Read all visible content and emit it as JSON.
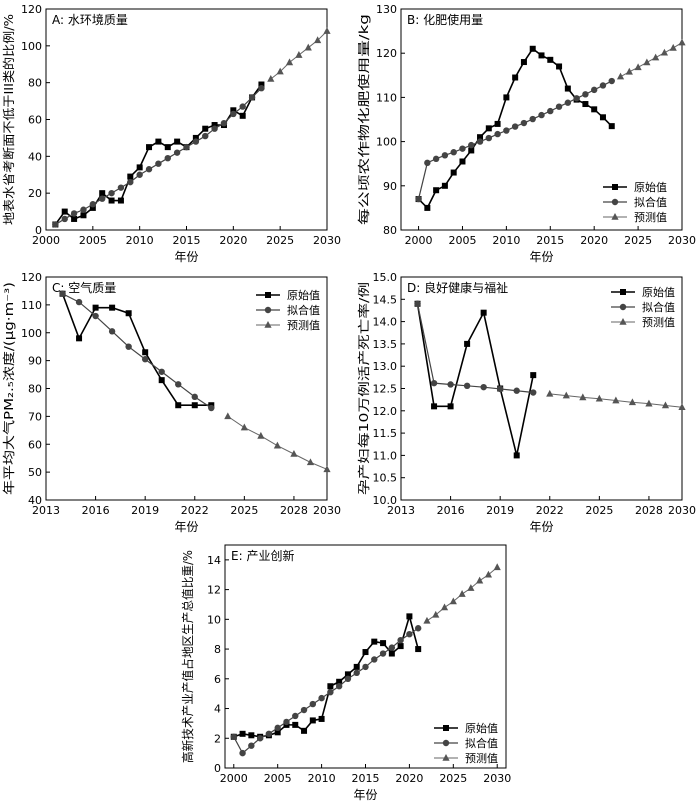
{
  "legend_labels": [
    "原始值",
    "拟合值",
    "预测值"
  ],
  "chart_data": [
    {
      "type": "line",
      "title": "A: 水环境质量",
      "xlabel": "年份",
      "ylabel": "地表水省考断面不低于III类的比例/%",
      "xlim": [
        2000,
        2030
      ],
      "ylim": [
        0,
        120
      ],
      "xticks": [
        2000,
        2005,
        2010,
        2015,
        2020,
        2025,
        2030
      ],
      "yticks": [
        0,
        20,
        40,
        60,
        80,
        100,
        120
      ],
      "legend": "none",
      "series": [
        {
          "name": "原始值",
          "marker": "square",
          "x": [
            2001,
            2002,
            2003,
            2004,
            2005,
            2006,
            2007,
            2008,
            2009,
            2010,
            2011,
            2012,
            2013,
            2014,
            2015,
            2016,
            2017,
            2018,
            2019,
            2020,
            2021,
            2022,
            2023
          ],
          "y": [
            3,
            10,
            6,
            8,
            12,
            20,
            16,
            16,
            29,
            34,
            45,
            48,
            45,
            48,
            45,
            50,
            55,
            57,
            57,
            65,
            62,
            72,
            79
          ]
        },
        {
          "name": "拟合值",
          "marker": "circle",
          "x": [
            2001,
            2002,
            2003,
            2004,
            2005,
            2006,
            2007,
            2008,
            2009,
            2010,
            2011,
            2012,
            2013,
            2014,
            2015,
            2016,
            2017,
            2018,
            2019,
            2020,
            2021,
            2022,
            2023
          ],
          "y": [
            3,
            6,
            9,
            11,
            14,
            17,
            20,
            23,
            26,
            30,
            33,
            36,
            39,
            42,
            45,
            48,
            51,
            55,
            58,
            63,
            67,
            72,
            77
          ]
        },
        {
          "name": "预测值",
          "marker": "triangle",
          "x": [
            2024,
            2025,
            2026,
            2027,
            2028,
            2029,
            2030
          ],
          "y": [
            82,
            86,
            91,
            95,
            99,
            103,
            108
          ]
        }
      ]
    },
    {
      "type": "line",
      "title": "B: 化肥使用量",
      "xlabel": "年份",
      "ylabel": "每公顷农作物化肥使用量/kg",
      "xlim": [
        1998,
        2030
      ],
      "ylim": [
        80,
        130
      ],
      "xticks": [
        2000,
        2005,
        2010,
        2015,
        2020,
        2025,
        2030
      ],
      "yticks": [
        80,
        90,
        100,
        110,
        120,
        130
      ],
      "legend": "lower-right",
      "series": [
        {
          "name": "原始值",
          "marker": "square",
          "x": [
            2000,
            2001,
            2002,
            2003,
            2004,
            2005,
            2006,
            2007,
            2008,
            2009,
            2010,
            2011,
            2012,
            2013,
            2014,
            2015,
            2016,
            2017,
            2018,
            2019,
            2020,
            2021,
            2022
          ],
          "y": [
            87,
            85,
            89,
            90,
            93,
            95.5,
            98,
            101,
            103,
            104,
            110,
            114.5,
            118,
            121,
            119.5,
            118.5,
            117,
            112,
            109.5,
            108.5,
            107.3,
            105.5,
            103.5
          ]
        },
        {
          "name": "拟合值",
          "marker": "circle",
          "x": [
            2000,
            2001,
            2002,
            2003,
            2004,
            2005,
            2006,
            2007,
            2008,
            2009,
            2010,
            2011,
            2012,
            2013,
            2014,
            2015,
            2016,
            2017,
            2018,
            2019,
            2020,
            2021,
            2022
          ],
          "y": [
            87,
            95.2,
            96.1,
            96.9,
            97.6,
            98.4,
            99.2,
            100,
            100.8,
            101.7,
            102.5,
            103.4,
            104.2,
            105.1,
            106,
            106.9,
            107.9,
            108.8,
            109.8,
            110.7,
            111.7,
            112.7,
            113.7
          ]
        },
        {
          "name": "预测值",
          "marker": "triangle",
          "x": [
            2023,
            2024,
            2025,
            2026,
            2027,
            2028,
            2029,
            2030
          ],
          "y": [
            114.7,
            115.8,
            116.8,
            117.9,
            119,
            120.1,
            121.2,
            122.4
          ]
        }
      ]
    },
    {
      "type": "line",
      "title": "C: 空气质量",
      "xlabel": "年份",
      "ylabel": "年平均大气PM₂.₅浓度/(μg·m⁻³)",
      "xlim": [
        2013,
        2030
      ],
      "ylim": [
        40,
        120
      ],
      "xticks": [
        2013,
        2016,
        2019,
        2022,
        2025,
        2028,
        2030
      ],
      "yticks": [
        40,
        50,
        60,
        70,
        80,
        90,
        100,
        110,
        120
      ],
      "legend": "top-right",
      "series": [
        {
          "name": "原始值",
          "marker": "square",
          "x": [
            2014,
            2015,
            2016,
            2017,
            2018,
            2019,
            2020,
            2021,
            2022,
            2023
          ],
          "y": [
            114,
            98,
            109,
            109,
            107,
            93,
            83,
            74,
            74,
            74
          ]
        },
        {
          "name": "拟合值",
          "marker": "circle",
          "x": [
            2014,
            2015,
            2016,
            2017,
            2018,
            2019,
            2020,
            2021,
            2022,
            2023
          ],
          "y": [
            114,
            111,
            106,
            100.5,
            95,
            90.5,
            86,
            81.5,
            77,
            73
          ]
        },
        {
          "name": "预测值",
          "marker": "triangle",
          "x": [
            2024,
            2025,
            2026,
            2027,
            2028,
            2029,
            2030
          ],
          "y": [
            70,
            66,
            63,
            59.5,
            56.5,
            53.5,
            51
          ]
        }
      ]
    },
    {
      "type": "line",
      "title": "D: 良好健康与福祉",
      "xlabel": "年份",
      "ylabel": "孕产妇每10万例活产死亡率/例",
      "xlim": [
        2013,
        2030
      ],
      "ylim": [
        10.0,
        15.0
      ],
      "xticks": [
        2013,
        2016,
        2019,
        2022,
        2025,
        2028,
        2030
      ],
      "yticks": [
        "10.0",
        "10.5",
        "11.0",
        "11.5",
        "12.0",
        "12.5",
        "13.0",
        "13.5",
        "14.0",
        "14.5",
        "15.0"
      ],
      "legend": "top-right",
      "series": [
        {
          "name": "原始值",
          "marker": "square",
          "x": [
            2014,
            2015,
            2016,
            2017,
            2018,
            2019,
            2020,
            2021
          ],
          "y": [
            14.4,
            12.1,
            12.1,
            13.5,
            14.2,
            12.5,
            11.0,
            12.8
          ]
        },
        {
          "name": "拟合值",
          "marker": "circle",
          "x": [
            2014,
            2015,
            2016,
            2017,
            2018,
            2019,
            2020,
            2021
          ],
          "y": [
            14.4,
            12.62,
            12.59,
            12.56,
            12.53,
            12.49,
            12.45,
            12.41
          ]
        },
        {
          "name": "预测值",
          "marker": "triangle",
          "x": [
            2022,
            2023,
            2024,
            2025,
            2026,
            2027,
            2028,
            2029,
            2030
          ],
          "y": [
            12.38,
            12.34,
            12.3,
            12.27,
            12.23,
            12.19,
            12.16,
            12.12,
            12.08
          ]
        }
      ]
    },
    {
      "type": "line",
      "title": "E: 产业创新",
      "xlabel": "年份",
      "ylabel": "高新技术产业产值占地区生产总值比重/%",
      "xlim": [
        1999,
        2031
      ],
      "ylim": [
        0,
        15
      ],
      "xticks": [
        2000,
        2005,
        2010,
        2015,
        2020,
        2025,
        2030
      ],
      "yticks": [
        0,
        2,
        4,
        6,
        8,
        10,
        12,
        14
      ],
      "legend": "lower-right",
      "series": [
        {
          "name": "原始值",
          "marker": "square",
          "x": [
            2000,
            2001,
            2002,
            2003,
            2004,
            2005,
            2006,
            2007,
            2008,
            2009,
            2010,
            2011,
            2012,
            2013,
            2014,
            2015,
            2016,
            2017,
            2018,
            2019,
            2020,
            2021
          ],
          "y": [
            2.1,
            2.3,
            2.2,
            2.1,
            2.2,
            2.4,
            2.9,
            2.9,
            2.5,
            3.2,
            3.3,
            5.5,
            5.8,
            6.3,
            6.8,
            7.8,
            8.5,
            8.4,
            7.7,
            8.2,
            10.2,
            8.0
          ]
        },
        {
          "name": "拟合值",
          "marker": "circle",
          "x": [
            2000,
            2001,
            2002,
            2003,
            2004,
            2005,
            2006,
            2007,
            2008,
            2009,
            2010,
            2011,
            2012,
            2013,
            2014,
            2015,
            2016,
            2017,
            2018,
            2019,
            2020,
            2021
          ],
          "y": [
            2.1,
            1.0,
            1.5,
            2.0,
            2.3,
            2.7,
            3.1,
            3.5,
            3.9,
            4.3,
            4.7,
            5.1,
            5.5,
            6.0,
            6.4,
            6.8,
            7.3,
            7.7,
            8.1,
            8.6,
            9.0,
            9.4
          ]
        },
        {
          "name": "预测值",
          "marker": "triangle",
          "x": [
            2022,
            2023,
            2024,
            2025,
            2026,
            2027,
            2028,
            2029,
            2030
          ],
          "y": [
            9.9,
            10.3,
            10.8,
            11.2,
            11.7,
            12.1,
            12.6,
            13.0,
            13.5
          ]
        }
      ]
    }
  ]
}
